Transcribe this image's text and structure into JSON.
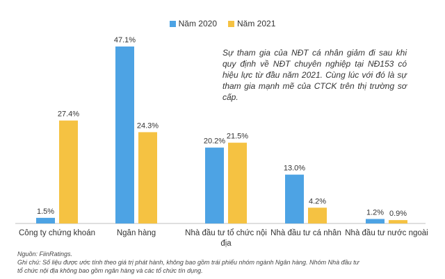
{
  "chart_data": {
    "type": "bar",
    "title": "",
    "xlabel": "",
    "ylabel": "",
    "ylim": [
      0,
      50
    ],
    "categories": [
      [
        "Công ty chứng khoán"
      ],
      [
        "Ngân hàng"
      ],
      [
        "Nhà đầu tư tổ chức nội",
        "địa"
      ],
      [
        "Nhà đầu tư cá nhân"
      ],
      [
        "Nhà đầu tư nước ngoài"
      ]
    ],
    "series": [
      {
        "name": "Năm 2020",
        "color": "#4da3e4",
        "values": [
          1.5,
          47.1,
          20.2,
          13.0,
          1.2
        ],
        "labels": [
          "1.5%",
          "47.1%",
          "20.2%",
          "13.0%",
          "1.2%"
        ]
      },
      {
        "name": "Năm 2021",
        "color": "#f5c242",
        "values": [
          27.4,
          24.3,
          21.5,
          4.2,
          0.9
        ],
        "labels": [
          "27.4%",
          "24.3%",
          "21.5%",
          "4.2%",
          "0.9%"
        ]
      }
    ],
    "annotation": "Sự tham gia của NĐT cá nhân giảm đi sau khi quy định về NĐT chuyên nghiệp tại NĐ153 có hiệu lực từ đầu năm 2021. Cùng lúc với đó là sự tham gia mạnh mẽ của CTCK trên thị trường sơ cấp."
  },
  "footer": {
    "source": "Nguồn: FiinRatings.",
    "note_line1": "Ghi chú: Số liệu được ước tính theo giá trị phát hành, không bao gồm trái phiếu nhóm ngành Ngân hàng. Nhóm Nhà đầu tư",
    "note_line2": "tổ chức nội địa không bao gồm ngân hàng và các tổ chức tín dụng."
  }
}
